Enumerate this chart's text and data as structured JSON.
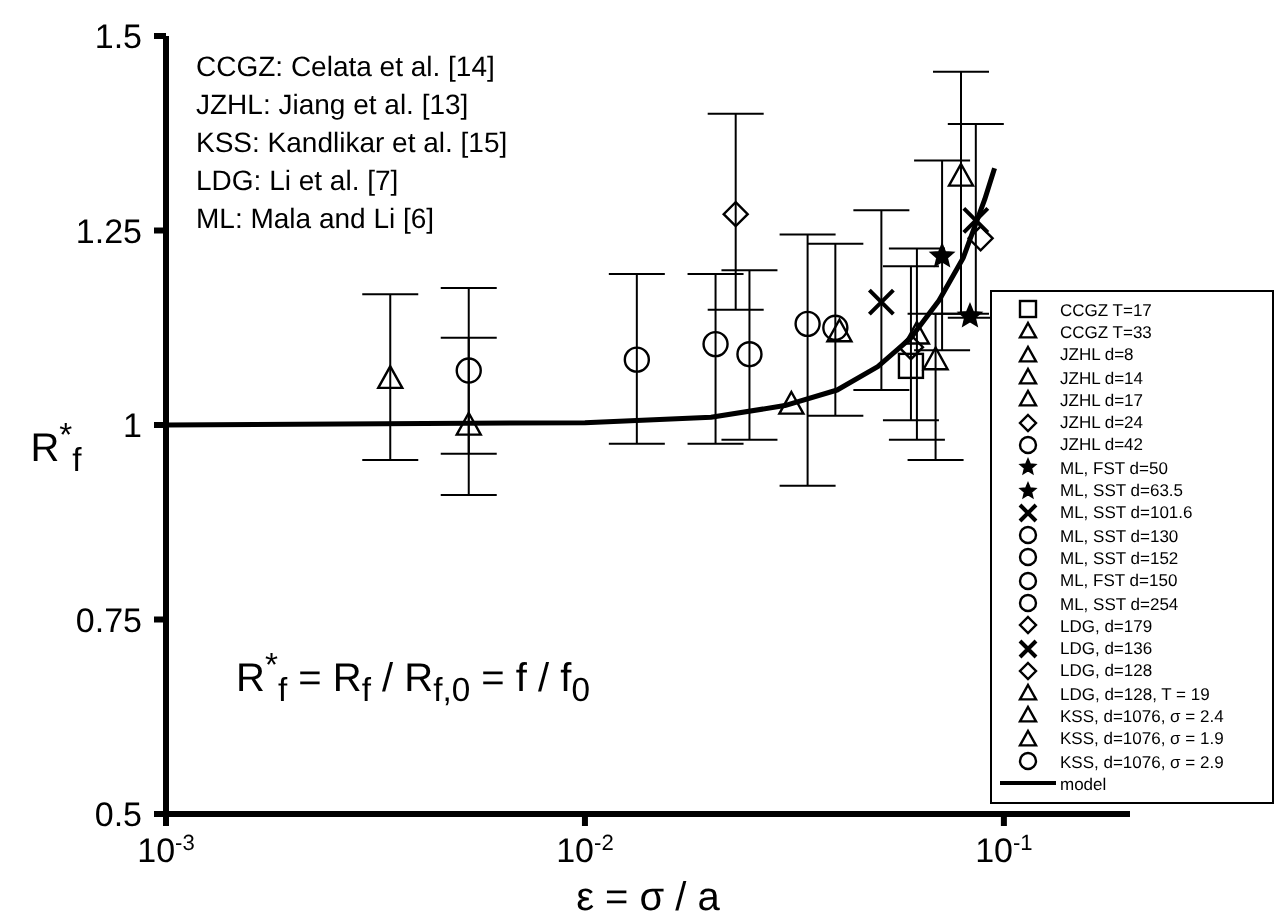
{
  "chart_data": {
    "type": "scatter",
    "xlabel": "ε = σ / a",
    "ylabel": "R$^{*}$$_{f}$",
    "log": "x",
    "legend": "right",
    "xlim": [
      0.001,
      0.2
    ],
    "xticks": [
      {
        "value": 0.001,
        "label": "10$^{-3}$"
      },
      {
        "value": 0.01,
        "label": "10$^{-2}$"
      },
      {
        "value": 0.1,
        "label": "10$^{-1}$"
      }
    ],
    "ylim": [
      0.5,
      1.5
    ],
    "yticks": [
      0.5,
      0.75,
      1,
      1.25,
      1.5
    ],
    "annotations": [
      "CCGZ:  Celata et al. [14]",
      "JZHL: Jiang et al. [13]",
      "KSS: Kandlikar et al. [15]",
      "LDG: Li et al. [7]",
      "ML: Mala and Li [6]",
      "R$^{*}$$_{f}$ = R$_{f}$ / R$_{f,0}$ = f / f$_{0}$"
    ],
    "series": [
      {
        "name": "CCGZ T=17",
        "color": "#000000",
        "marker": "square",
        "x": [
          0.06
        ],
        "values": [
          1.076
        ],
        "errors": [
          [
            1.006,
            1.204
          ]
        ]
      },
      {
        "name": "CCGZ T=33",
        "color": "#000000",
        "marker": "triangle",
        "x": [
          0.062
        ],
        "values": [
          1.117
        ],
        "errors": [
          [
            0.981,
            1.227
          ]
        ]
      },
      {
        "name": "JZHL d=8",
        "color": "#000000",
        "marker": "triangle",
        "x": [
          0.0687
        ],
        "values": [
          1.084
        ],
        "errors": [
          [
            0.955,
            1.143
          ]
        ]
      },
      {
        "name": "JZHL d=14",
        "color": "#000000",
        "marker": "triangle",
        "x": [
          0.0405
        ],
        "values": [
          1.12
        ],
        "errors": [
          null
        ]
      },
      {
        "name": "JZHL d=17",
        "color": "#000000",
        "marker": "triangle",
        "x": [
          0.0311
        ],
        "values": [
          1.027
        ],
        "errors": [
          null
        ]
      },
      {
        "name": "JZHL d=24",
        "color": "#000000",
        "marker": "diamond",
        "x": [
          0.0229
        ],
        "values": [
          1.271
        ],
        "errors": [
          [
            1.148,
            1.4
          ]
        ]
      },
      {
        "name": "JZHL d=42",
        "color": "#000000",
        "marker": "circle",
        "x": [
          0.0133
        ],
        "values": [
          1.084
        ],
        "errors": [
          [
            0.976,
            1.194
          ]
        ]
      },
      {
        "name": "ML, FST d=50",
        "color": "#000000",
        "marker": "star",
        "x": [
          0.0712
        ],
        "values": [
          1.217
        ],
        "errors": [
          [
            1.096,
            1.34
          ]
        ]
      },
      {
        "name": "ML, SST d=63.5",
        "color": "#000000",
        "marker": "star",
        "x": [
          0.083
        ],
        "values": [
          1.14
        ],
        "errors": [
          null
        ]
      },
      {
        "name": "ML, SST d=101.6",
        "color": "#000000",
        "marker": "cross",
        "x": [
          0.051
        ],
        "values": [
          1.158
        ],
        "errors": [
          [
            1.045,
            1.276
          ]
        ]
      },
      {
        "name": "ML, SST d=130",
        "color": "#000000",
        "marker": "circle",
        "x": [
          0.0396
        ],
        "values": [
          1.125
        ],
        "errors": [
          [
            1.012,
            1.233
          ]
        ]
      },
      {
        "name": "ML, SST d=152",
        "color": "#000000",
        "marker": "circle",
        "x": [
          0.034
        ],
        "values": [
          1.13
        ],
        "errors": [
          [
            0.922,
            1.245
          ]
        ]
      },
      {
        "name": "ML, FST d=150",
        "color": "#000000",
        "marker": "circle",
        "x": [
          0.0247
        ],
        "values": [
          1.091
        ],
        "errors": [
          [
            0.981,
            1.199
          ]
        ]
      },
      {
        "name": "ML, SST d=254",
        "color": "#000000",
        "marker": "circle",
        "x": [
          0.0205
        ],
        "values": [
          1.104
        ],
        "errors": [
          [
            0.976,
            1.194
          ]
        ]
      },
      {
        "name": "LDG, d=179",
        "color": "#000000",
        "marker": "diamond",
        "x": [
          0.06
        ],
        "values": [
          1.1
        ],
        "errors": [
          null
        ]
      },
      {
        "name": "LDG, d=136",
        "color": "#000000",
        "marker": "cross",
        "x": [
          0.0857
        ],
        "values": [
          1.263
        ],
        "errors": [
          [
            1.138,
            1.387
          ]
        ]
      },
      {
        "name": "LDG, d=128",
        "color": "#000000",
        "marker": "diamond",
        "x": [
          0.088
        ],
        "values": [
          1.24
        ],
        "errors": [
          null
        ]
      },
      {
        "name": "LDG, d=128, T = 19",
        "color": "#000000",
        "marker": "triangle",
        "x": [
          0.079
        ],
        "values": [
          1.32
        ],
        "errors": [
          [
            1.143,
            1.454
          ]
        ]
      },
      {
        "name": "KSS, d=1076, σ = 2.4",
        "color": "#000000",
        "marker": "triangle",
        "x": [
          0.00528
        ],
        "values": [
          1.0
        ],
        "errors": [
          [
            0.963,
            1.112
          ]
        ]
      },
      {
        "name": "KSS, d=1076, σ = 1.9",
        "color": "#000000",
        "marker": "triangle",
        "x": [
          0.00343
        ],
        "values": [
          1.06
        ],
        "errors": [
          [
            0.955,
            1.168
          ]
        ]
      },
      {
        "name": "KSS, d=1076, σ = 2.9",
        "color": "#000000",
        "marker": "circle",
        "x": [
          0.00528
        ],
        "values": [
          1.07
        ],
        "errors": [
          [
            0.91,
            1.176
          ]
        ]
      },
      {
        "name": "model",
        "type": "line",
        "color": "#000000",
        "marker": "none",
        "line_style": "solid",
        "x": [
          0.001,
          0.01,
          0.02,
          0.03,
          0.04,
          0.05,
          0.06,
          0.07,
          0.08,
          0.09,
          0.095
        ],
        "values": [
          1,
          1.003,
          1.01,
          1.025,
          1.045,
          1.075,
          1.112,
          1.16,
          1.215,
          1.29,
          1.33
        ]
      }
    ]
  }
}
